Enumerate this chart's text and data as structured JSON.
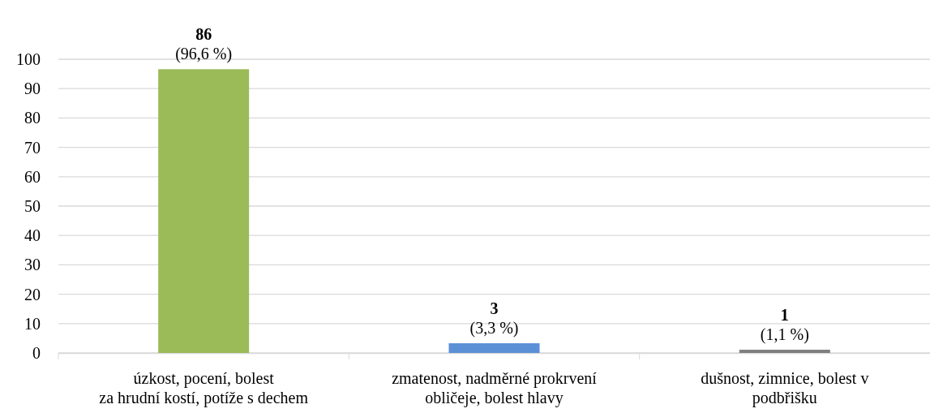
{
  "chart_data": {
    "type": "bar",
    "categories": [
      "úzkost, pocení, bolest\nza hrudní kostí, potíže s dechem",
      "zmatenost, nadměrné prokrvení\nobličeje, bolest hlavy",
      "dušnost, zimnice, bolest v\npodbřišku"
    ],
    "values": [
      96.6,
      3.3,
      1.1
    ],
    "colors": [
      "#9bbb59",
      "#5b8fd6",
      "#7f7f7f"
    ],
    "value_labels": [
      "86\n(96,6 %)",
      "3\n(3,3 %)",
      "1\n(1,1 %)"
    ],
    "ylim": [
      0,
      100
    ],
    "yticks": [
      0,
      10,
      20,
      30,
      40,
      50,
      60,
      70,
      80,
      90,
      100
    ],
    "grid": "y"
  }
}
